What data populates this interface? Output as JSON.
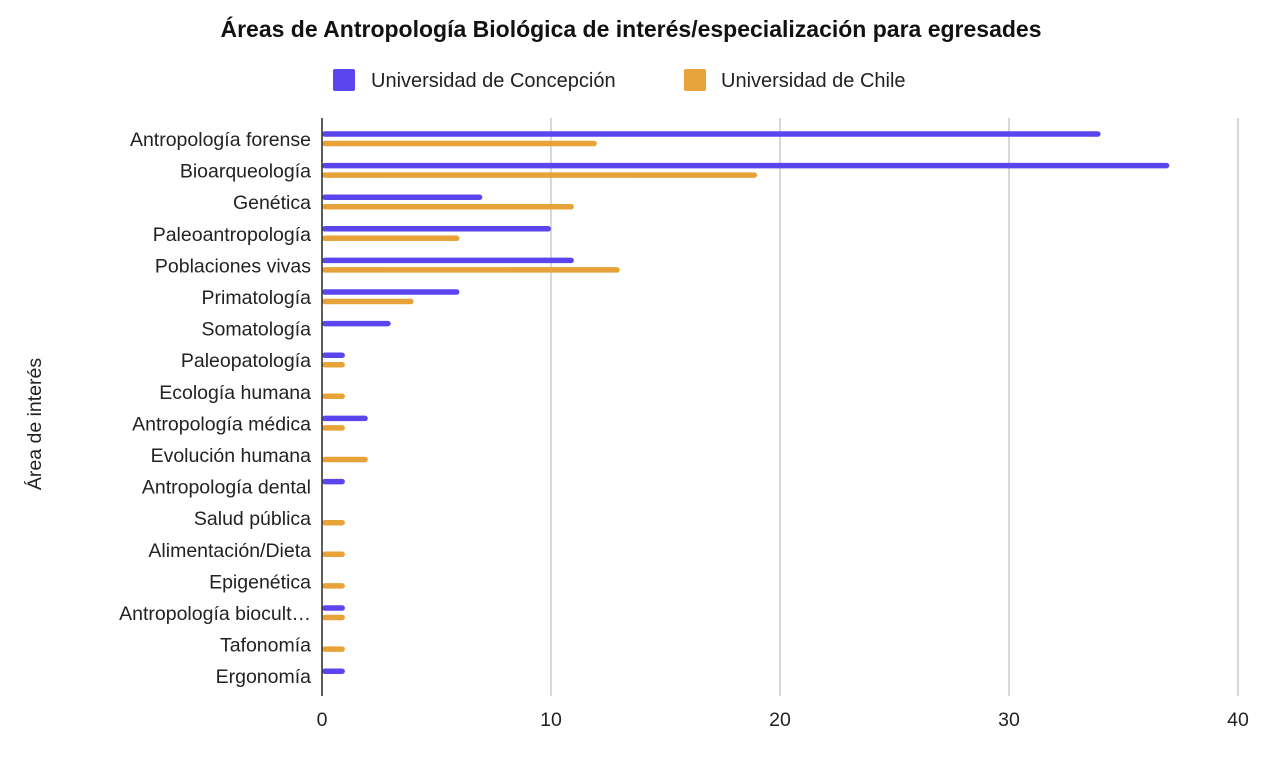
{
  "chart_data": {
    "type": "bar",
    "orientation": "horizontal",
    "title": "Áreas de Antropología Biológica de interés/especialización para egresades",
    "ylabel": "Área de interés",
    "xlabel": "",
    "xlim": [
      0,
      40
    ],
    "x_ticks": [
      0,
      10,
      20,
      30,
      40
    ],
    "grid": true,
    "legend_position": "top-center",
    "categories": [
      "Antropología forense",
      "Bioarqueología",
      "Genética",
      "Paleoantropología",
      "Poblaciones vivas",
      "Primatología",
      "Somatología",
      "Paleopatología",
      "Ecología humana",
      "Antropología médica",
      "Evolución humana",
      "Antropología dental",
      "Salud pública",
      "Alimentación/Dieta",
      "Epigenética",
      "Antropología biocult…",
      "Tafonomía",
      "Ergonomía"
    ],
    "series": [
      {
        "name": "Universidad de Concepción",
        "color": "#5b45ee",
        "values": [
          34,
          37,
          7,
          10,
          11,
          6,
          3,
          1,
          0,
          2,
          0,
          1,
          0,
          0,
          0,
          1,
          0,
          1
        ]
      },
      {
        "name": "Universidad de Chile",
        "color": "#e8a23a",
        "values": [
          12,
          19,
          11,
          6,
          13,
          4,
          0,
          1,
          1,
          1,
          2,
          0,
          1,
          1,
          1,
          1,
          1,
          0
        ]
      }
    ]
  }
}
